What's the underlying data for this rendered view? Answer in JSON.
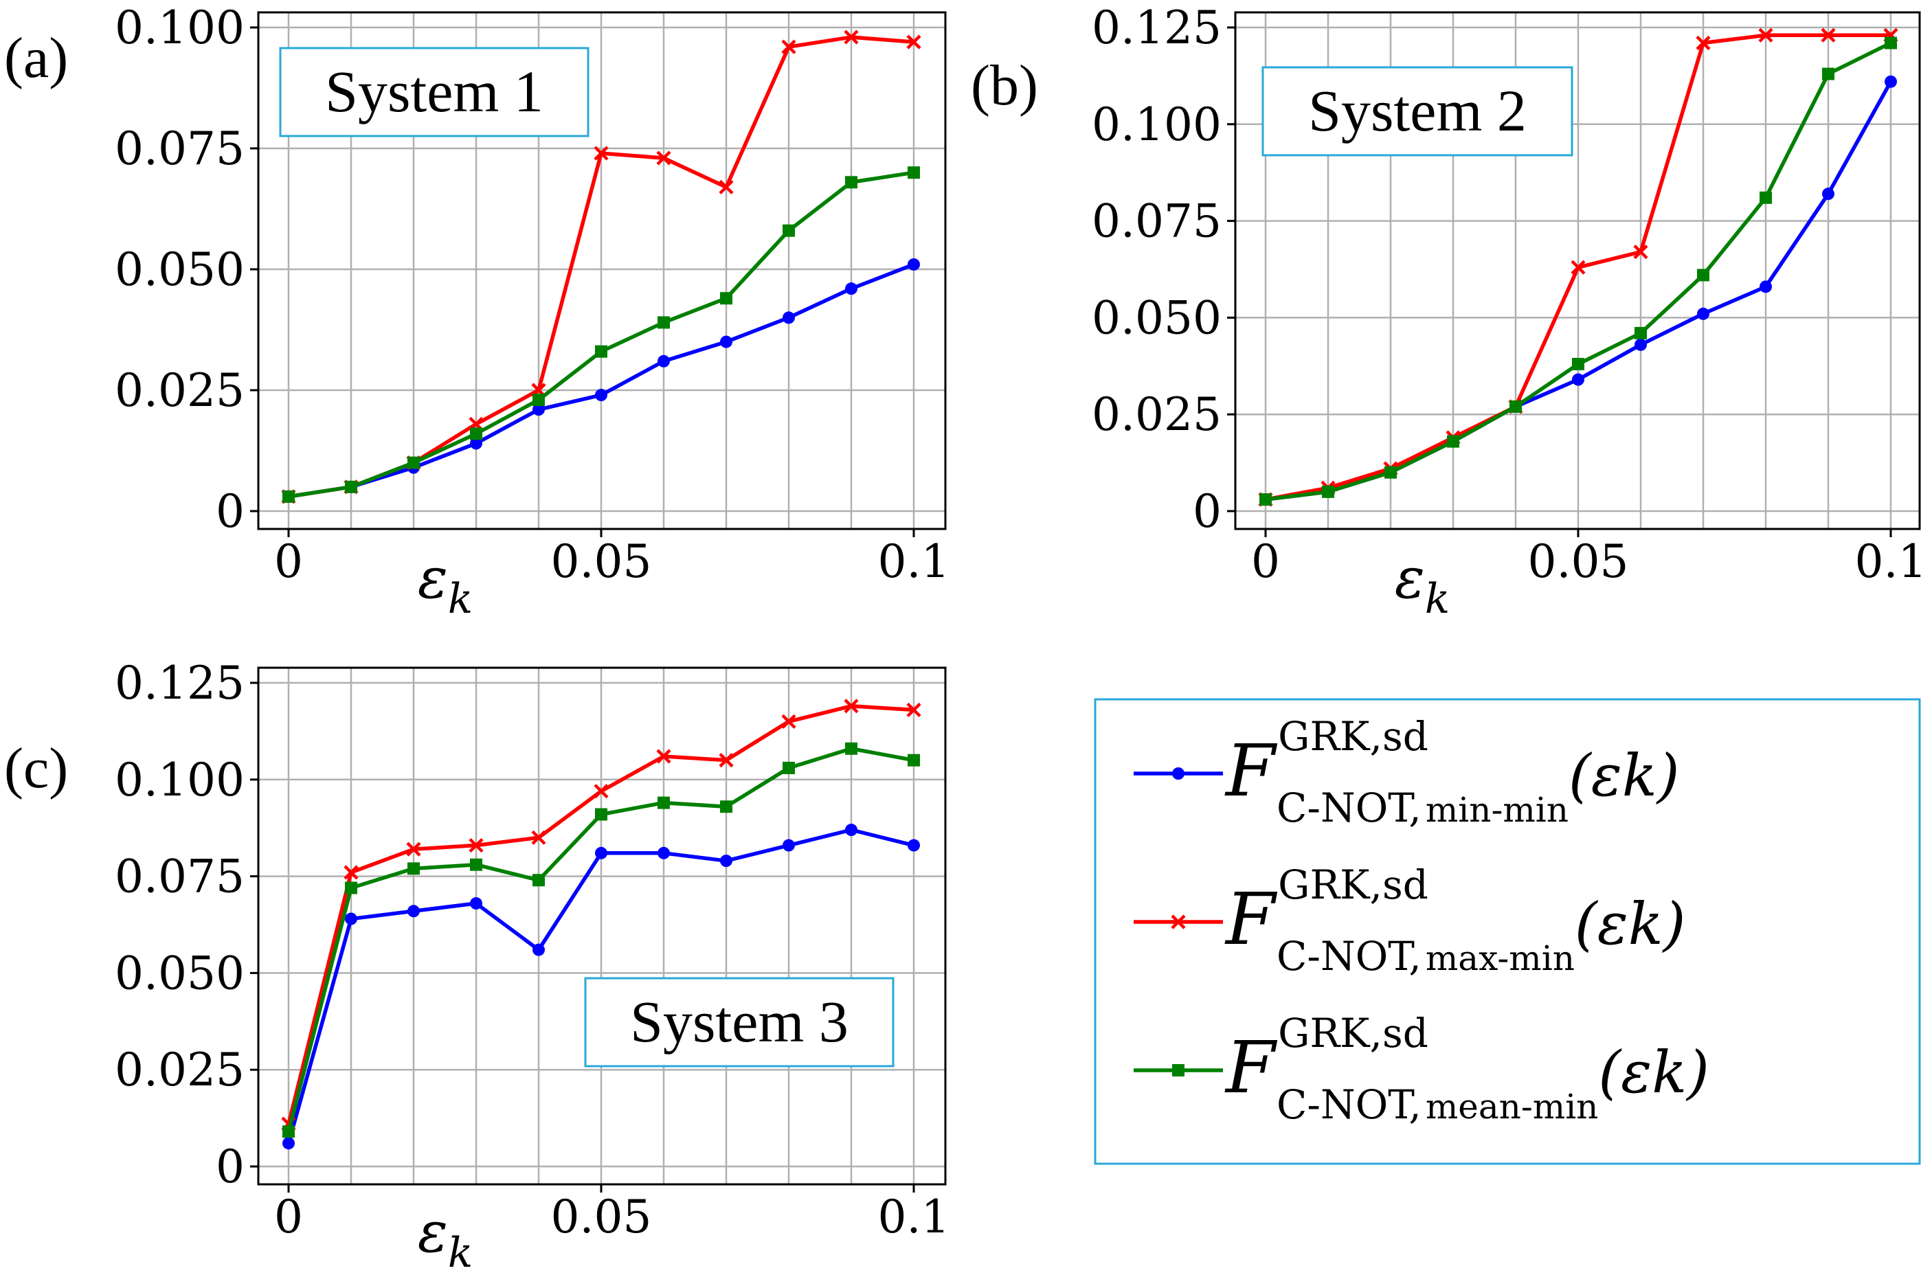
{
  "colors": {
    "min_min": "#0000ff",
    "max_min": "#ff0000",
    "mean_min": "#008000",
    "grid": "#b0b0b0",
    "box_border": "#29a8d8"
  },
  "legend": {
    "entries": [
      {
        "series": "min_min",
        "symbol": "F",
        "sup": "GRK,sd",
        "sub_prefix": "C-NOT,",
        "sub_suffix": "min-min",
        "arg": "(εk)"
      },
      {
        "series": "max_min",
        "symbol": "F",
        "sup": "GRK,sd",
        "sub_prefix": "C-NOT,",
        "sub_suffix": "max-min",
        "arg": "(εk)"
      },
      {
        "series": "mean_min",
        "symbol": "F",
        "sup": "GRK,sd",
        "sub_prefix": "C-NOT,",
        "sub_suffix": "mean-min",
        "arg": "(εk)"
      }
    ]
  },
  "chart_data": [
    {
      "type": "line",
      "panel_label": "(a)",
      "title": "System 1",
      "xlabel": "εk",
      "xlim": [
        0,
        0.1
      ],
      "ylim": [
        0,
        0.1
      ],
      "xticks": [
        "0",
        "0.05",
        "0.1"
      ],
      "yticks": [
        "0",
        "0.025",
        "0.050",
        "0.075",
        "0.100"
      ],
      "x": [
        0,
        0.01,
        0.02,
        0.03,
        0.04,
        0.05,
        0.06,
        0.07,
        0.08,
        0.09,
        0.1
      ],
      "series": [
        {
          "name": "min-min",
          "color_key": "min_min",
          "marker": "circle",
          "values": [
            0.003,
            0.005,
            0.009,
            0.014,
            0.021,
            0.024,
            0.031,
            0.035,
            0.04,
            0.046,
            0.051
          ]
        },
        {
          "name": "max-min",
          "color_key": "max_min",
          "marker": "x",
          "values": [
            0.003,
            0.005,
            0.01,
            0.018,
            0.025,
            0.074,
            0.073,
            0.067,
            0.096,
            0.098,
            0.097
          ]
        },
        {
          "name": "mean-min",
          "color_key": "mean_min",
          "marker": "square",
          "values": [
            0.003,
            0.005,
            0.01,
            0.016,
            0.023,
            0.033,
            0.039,
            0.044,
            0.058,
            0.068,
            0.07
          ]
        }
      ]
    },
    {
      "type": "line",
      "panel_label": "(b)",
      "title": "System 2",
      "xlabel": "εk",
      "xlim": [
        0,
        0.1
      ],
      "ylim": [
        0,
        0.125
      ],
      "xticks": [
        "0",
        "0.05",
        "0.1"
      ],
      "yticks": [
        "0",
        "0.025",
        "0.050",
        "0.075",
        "0.100",
        "0.125"
      ],
      "x": [
        0,
        0.01,
        0.02,
        0.03,
        0.04,
        0.05,
        0.06,
        0.07,
        0.08,
        0.09,
        0.1
      ],
      "series": [
        {
          "name": "min-min",
          "color_key": "min_min",
          "marker": "circle",
          "values": [
            0.003,
            0.005,
            0.01,
            0.018,
            0.027,
            0.034,
            0.043,
            0.051,
            0.058,
            0.082,
            0.111
          ]
        },
        {
          "name": "max-min",
          "color_key": "max_min",
          "marker": "x",
          "values": [
            0.003,
            0.006,
            0.011,
            0.019,
            0.027,
            0.063,
            0.067,
            0.121,
            0.123,
            0.123,
            0.123
          ]
        },
        {
          "name": "mean-min",
          "color_key": "mean_min",
          "marker": "square",
          "values": [
            0.003,
            0.005,
            0.01,
            0.018,
            0.027,
            0.038,
            0.046,
            0.061,
            0.081,
            0.113,
            0.121
          ]
        }
      ]
    },
    {
      "type": "line",
      "panel_label": "(c)",
      "title": "System 3",
      "xlabel": "εk",
      "xlim": [
        0,
        0.1
      ],
      "ylim": [
        0,
        0.125
      ],
      "xticks": [
        "0",
        "0.05",
        "0.1"
      ],
      "yticks": [
        "0",
        "0.025",
        "0.050",
        "0.075",
        "0.100",
        "0.125"
      ],
      "x": [
        0,
        0.01,
        0.02,
        0.03,
        0.04,
        0.05,
        0.06,
        0.07,
        0.08,
        0.09,
        0.1
      ],
      "series": [
        {
          "name": "min-min",
          "color_key": "min_min",
          "marker": "circle",
          "values": [
            0.006,
            0.064,
            0.066,
            0.068,
            0.056,
            0.081,
            0.081,
            0.079,
            0.083,
            0.087,
            0.083
          ]
        },
        {
          "name": "max-min",
          "color_key": "max_min",
          "marker": "x",
          "values": [
            0.011,
            0.076,
            0.082,
            0.083,
            0.085,
            0.097,
            0.106,
            0.105,
            0.115,
            0.119,
            0.118
          ]
        },
        {
          "name": "mean-min",
          "color_key": "mean_min",
          "marker": "square",
          "values": [
            0.009,
            0.072,
            0.077,
            0.078,
            0.074,
            0.091,
            0.094,
            0.093,
            0.103,
            0.108,
            0.105
          ]
        }
      ]
    }
  ]
}
